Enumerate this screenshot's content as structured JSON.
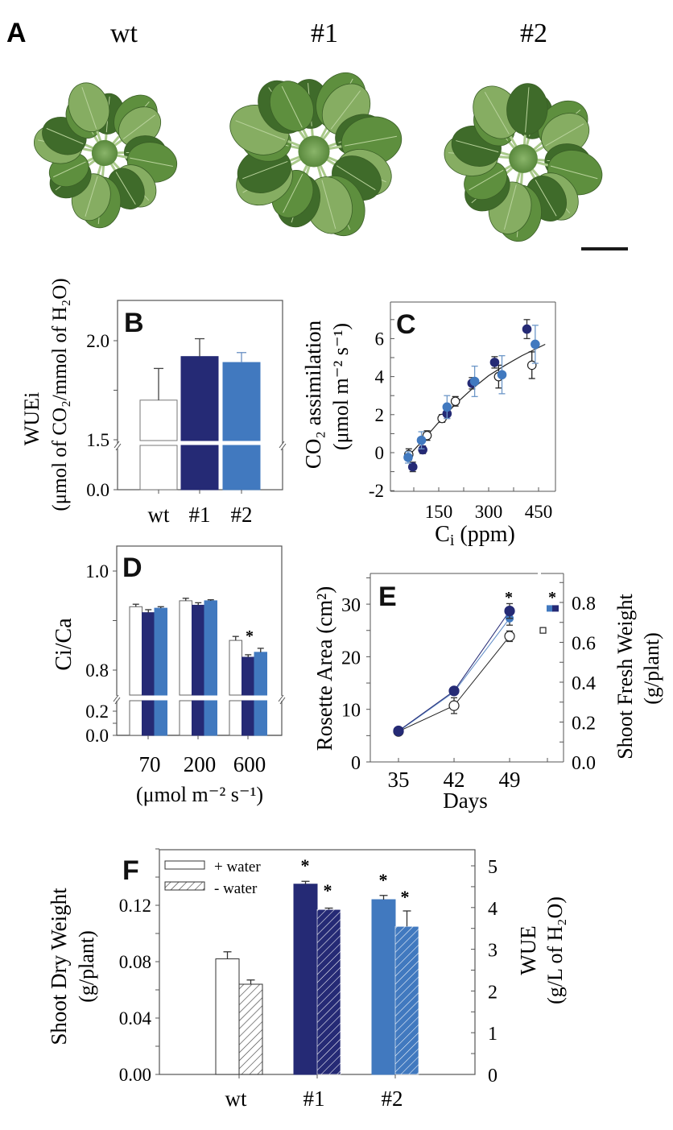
{
  "colors": {
    "wt": "#ffffff",
    "line1": "#252a75",
    "line2": "#4179bf",
    "axis": "#555555",
    "text": "#222222",
    "leaf": "#5e8f3e",
    "leaf_dark": "#3f6b2a",
    "leaf_light": "#86ad62"
  },
  "panel_a": {
    "letter": "A",
    "labels": [
      "wt",
      "#1",
      "#2"
    ],
    "scale_bar": "scale bar"
  },
  "chart_data": [
    {
      "panel": "B",
      "type": "bar",
      "letter": "B",
      "categories": [
        "wt",
        "#1",
        "#2"
      ],
      "values": [
        1.7,
        1.92,
        1.89
      ],
      "errors": [
        0.16,
        0.09,
        0.05
      ],
      "ylabel": "WUEi",
      "ylabel2": "(μmol of CO₂/mmol of H₂O)",
      "yticks": [
        "2.0",
        "1.5",
        "0.0"
      ],
      "ylim_upper": [
        1.5,
        2.2
      ],
      "ylim_lower": [
        0.0,
        1.5
      ],
      "axis_break": true
    },
    {
      "panel": "C",
      "type": "scatter",
      "letter": "C",
      "xlabel": "Ci (ppm)",
      "ylabel": "CO₂ assimilation",
      "ylabel2": "(μmol m⁻² s⁻¹)",
      "xticks": [
        "150",
        "300",
        "450"
      ],
      "yticks": [
        "6",
        "4",
        "2",
        "0",
        "-2"
      ],
      "xlim": [
        0,
        500
      ],
      "ylim": [
        -2,
        7.5
      ],
      "series": [
        {
          "name": "wt",
          "points": [
            [
              60,
              -0.1
            ],
            [
              115,
              0.9
            ],
            [
              160,
              1.8
            ],
            [
              200,
              2.7
            ],
            [
              330,
              4.0
            ],
            [
              430,
              4.6
            ]
          ],
          "yerr": [
            0.3,
            0.25,
            0.2,
            0.25,
            0.6,
            0.7
          ]
        },
        {
          "name": "#1",
          "points": [
            [
              72,
              -0.75
            ],
            [
              102,
              0.15
            ],
            [
              175,
              2.05
            ],
            [
              250,
              3.65
            ],
            [
              318,
              4.75
            ],
            [
              415,
              6.5
            ]
          ],
          "yerr": [
            0.25,
            0.2,
            0.25,
            0.3,
            0.3,
            0.5
          ]
        },
        {
          "name": "#2",
          "points": [
            [
              58,
              -0.25
            ],
            [
              98,
              0.65
            ],
            [
              175,
              2.4
            ],
            [
              258,
              3.75
            ],
            [
              340,
              4.1
            ],
            [
              440,
              5.7
            ]
          ],
          "yerr": [
            0.3,
            0.45,
            0.6,
            0.8,
            1.0,
            1.0
          ]
        }
      ],
      "fit_curve": [
        [
          55,
          -0.25
        ],
        [
          100,
          0.6
        ],
        [
          150,
          1.6
        ],
        [
          200,
          2.55
        ],
        [
          250,
          3.35
        ],
        [
          300,
          4.05
        ],
        [
          350,
          4.6
        ],
        [
          400,
          5.1
        ],
        [
          470,
          5.7
        ]
      ]
    },
    {
      "panel": "D",
      "type": "bar",
      "letter": "D",
      "categories": [
        "70",
        "200",
        "600"
      ],
      "xlabel": "(μmol m⁻² s⁻¹)",
      "ylabel": "Ci/Ca",
      "yticks": [
        "1.0",
        "0.8",
        "0.2",
        "0.0"
      ],
      "ylim_upper": [
        0.75,
        1.05
      ],
      "ylim_lower": [
        0.0,
        0.25
      ],
      "axis_break": true,
      "series": [
        {
          "name": "wt",
          "values": [
            0.928,
            0.94,
            0.86
          ],
          "errors": [
            0.005,
            0.005,
            0.008
          ]
        },
        {
          "name": "#1",
          "values": [
            0.916,
            0.931,
            0.826
          ],
          "errors": [
            0.006,
            0.005,
            0.005
          ]
        },
        {
          "name": "#2",
          "values": [
            0.925,
            0.94,
            0.836
          ],
          "errors": [
            0.003,
            0.002,
            0.008
          ]
        }
      ],
      "annotations": [
        {
          "category": "600",
          "text": "*"
        }
      ]
    },
    {
      "panel": "E",
      "type": "line",
      "letter": "E",
      "xlabel": "Days",
      "ylabel": "Rosette Area (cm²)",
      "ylabel_right": "Shoot Fresh Weight",
      "ylabel_right2": "(g/plant)",
      "x": [
        35,
        42,
        49
      ],
      "xticks": [
        "35",
        "42",
        "49"
      ],
      "yticks": [
        "30",
        "20",
        "10",
        "0"
      ],
      "yticks_right": [
        "0.8",
        "0.6",
        "0.4",
        "0.2",
        "0.0"
      ],
      "ylim": [
        0,
        35
      ],
      "ylim_right": [
        0,
        0.94
      ],
      "series": [
        {
          "name": "wt",
          "values": [
            5.8,
            10.7,
            23.9
          ],
          "errors": [
            0.3,
            1.5,
            1.0
          ]
        },
        {
          "name": "#1",
          "values": [
            5.9,
            13.5,
            28.7
          ],
          "errors": [
            0.3,
            0.5,
            1.4
          ]
        },
        {
          "name": "#2",
          "values": [
            5.8,
            13.3,
            27.3
          ],
          "errors": [
            0.3,
            0.5,
            1.3
          ]
        }
      ],
      "fresh_weight": [
        {
          "name": "wt",
          "value": 0.66
        },
        {
          "name": "#2",
          "value": 0.77
        },
        {
          "name": "#1",
          "value": 0.77
        }
      ],
      "annotations": [
        "*",
        "*"
      ]
    },
    {
      "panel": "F",
      "type": "bar",
      "letter": "F",
      "categories": [
        "wt",
        "#1",
        "#2"
      ],
      "ylabel": "Shoot Dry Weight",
      "ylabel2": "(g/plant)",
      "ylabel_right": "WUE",
      "ylabel_right2": "(g/L of H₂O)",
      "yticks": [
        "0.12",
        "0.08",
        "0.04",
        "0.00"
      ],
      "yticks_right": [
        "5",
        "4",
        "3",
        "2",
        "1",
        "0"
      ],
      "ylim": [
        0,
        0.16
      ],
      "ylim_right": [
        0,
        5.33
      ],
      "legend": [
        {
          "label": "+ water",
          "pattern": "solid"
        },
        {
          "label": "- water",
          "pattern": "hatched"
        }
      ],
      "legend_position": "top-left",
      "series": [
        {
          "name": "+ water",
          "values": [
            0.082,
            0.135,
            0.124
          ],
          "errors": [
            0.005,
            0.002,
            0.003
          ]
        },
        {
          "name": "- water",
          "values": [
            0.064,
            0.117,
            0.105
          ],
          "errors": [
            0.003,
            0.001,
            0.011
          ]
        }
      ],
      "annotations": [
        "*",
        "*",
        "*",
        "*"
      ]
    }
  ]
}
